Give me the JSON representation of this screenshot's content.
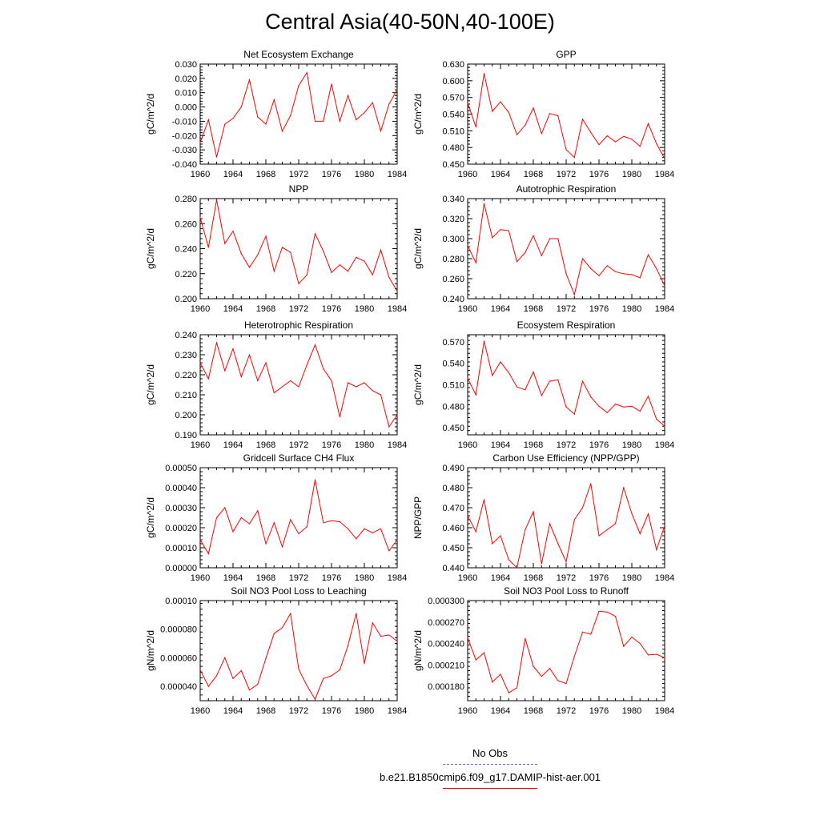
{
  "title": "Central Asia(40-50N,40-100E)",
  "legend": {
    "entries": [
      {
        "label": "No Obs",
        "color": "#6a6ae0",
        "dash": "dashed"
      },
      {
        "label": "b.e21.B1850cmip6.f09_g17.DAMIP-hist-aer.001",
        "color": "#e00000",
        "dash": "solid"
      }
    ]
  },
  "colors": {
    "series": "#ff0000",
    "axis": "#000000"
  },
  "chart_data": [
    {
      "type": "line",
      "title": "Net Ecosystem Exchange",
      "ylabel": "gC/m^2/d",
      "xlabel": "",
      "xlim": [
        1960,
        1984
      ],
      "ylim": [
        -0.04,
        0.03
      ],
      "xticks": [
        "1960",
        "1964",
        "1968",
        "1972",
        "1976",
        "1980",
        "1984"
      ],
      "yticks": [
        "-0.040",
        "-0.030",
        "-0.020",
        "-0.010",
        "0.000",
        "0.010",
        "0.020",
        "0.030"
      ],
      "x": [
        1960,
        1961,
        1962,
        1963,
        1964,
        1965,
        1966,
        1967,
        1968,
        1969,
        1970,
        1971,
        1972,
        1973,
        1974,
        1975,
        1976,
        1977,
        1978,
        1979,
        1980,
        1981,
        1982,
        1983,
        1984
      ],
      "values": [
        -0.025,
        -0.009,
        -0.035,
        -0.012,
        -0.008,
        0.0,
        0.019,
        -0.007,
        -0.012,
        0.005,
        -0.017,
        -0.006,
        0.015,
        0.024,
        -0.01,
        -0.01,
        0.016,
        -0.01,
        0.008,
        -0.009,
        -0.004,
        0.003,
        -0.017,
        0.002,
        0.012
      ]
    },
    {
      "type": "line",
      "title": "GPP",
      "ylabel": "gC/m^2/d",
      "xlabel": "",
      "xlim": [
        1960,
        1984
      ],
      "ylim": [
        0.45,
        0.63
      ],
      "xticks": [
        "1960",
        "1964",
        "1968",
        "1972",
        "1976",
        "1980",
        "1984"
      ],
      "yticks": [
        "0.450",
        "0.480",
        "0.510",
        "0.540",
        "0.570",
        "0.600",
        "0.630"
      ],
      "x": [
        1960,
        1961,
        1962,
        1963,
        1964,
        1965,
        1966,
        1967,
        1968,
        1969,
        1970,
        1971,
        1972,
        1973,
        1974,
        1975,
        1976,
        1977,
        1978,
        1979,
        1980,
        1981,
        1982,
        1983,
        1984
      ],
      "values": [
        0.56,
        0.517,
        0.613,
        0.545,
        0.562,
        0.543,
        0.503,
        0.52,
        0.551,
        0.505,
        0.541,
        0.537,
        0.476,
        0.462,
        0.531,
        0.507,
        0.485,
        0.501,
        0.49,
        0.5,
        0.495,
        0.482,
        0.523,
        0.487,
        0.46
      ]
    },
    {
      "type": "line",
      "title": "NPP",
      "ylabel": "gC/m^2/d",
      "xlabel": "",
      "xlim": [
        1960,
        1984
      ],
      "ylim": [
        0.2,
        0.28
      ],
      "xticks": [
        "1960",
        "1964",
        "1968",
        "1972",
        "1976",
        "1980",
        "1984"
      ],
      "yticks": [
        "0.200",
        "0.220",
        "0.240",
        "0.260",
        "0.280"
      ],
      "x": [
        1960,
        1961,
        1962,
        1963,
        1964,
        1965,
        1966,
        1967,
        1968,
        1969,
        1970,
        1971,
        1972,
        1973,
        1974,
        1975,
        1976,
        1977,
        1978,
        1979,
        1980,
        1981,
        1982,
        1983,
        1984
      ],
      "values": [
        0.265,
        0.241,
        0.279,
        0.244,
        0.254,
        0.236,
        0.225,
        0.235,
        0.25,
        0.222,
        0.241,
        0.237,
        0.212,
        0.219,
        0.252,
        0.238,
        0.221,
        0.227,
        0.222,
        0.233,
        0.23,
        0.219,
        0.239,
        0.217,
        0.206
      ]
    },
    {
      "type": "line",
      "title": "Autotrophic Respiration",
      "ylabel": "gC/m^2/d",
      "xlabel": "",
      "xlim": [
        1960,
        1984
      ],
      "ylim": [
        0.24,
        0.34
      ],
      "xticks": [
        "1960",
        "1964",
        "1968",
        "1972",
        "1976",
        "1980",
        "1984"
      ],
      "yticks": [
        "0.240",
        "0.260",
        "0.280",
        "0.300",
        "0.320",
        "0.340"
      ],
      "x": [
        1960,
        1961,
        1962,
        1963,
        1964,
        1965,
        1966,
        1967,
        1968,
        1969,
        1970,
        1971,
        1972,
        1973,
        1974,
        1975,
        1976,
        1977,
        1978,
        1979,
        1980,
        1981,
        1982,
        1983,
        1984
      ],
      "values": [
        0.293,
        0.276,
        0.335,
        0.301,
        0.309,
        0.308,
        0.277,
        0.286,
        0.303,
        0.283,
        0.3,
        0.3,
        0.265,
        0.244,
        0.28,
        0.27,
        0.263,
        0.273,
        0.267,
        0.265,
        0.264,
        0.261,
        0.284,
        0.27,
        0.253
      ]
    },
    {
      "type": "line",
      "title": "Heterotrophic Respiration",
      "ylabel": "gC/m^2/d",
      "xlabel": "",
      "xlim": [
        1960,
        1984
      ],
      "ylim": [
        0.19,
        0.24
      ],
      "xticks": [
        "1960",
        "1964",
        "1968",
        "1972",
        "1976",
        "1980",
        "1984"
      ],
      "yticks": [
        "0.190",
        "0.200",
        "0.210",
        "0.220",
        "0.230",
        "0.240"
      ],
      "x": [
        1960,
        1961,
        1962,
        1963,
        1964,
        1965,
        1966,
        1967,
        1968,
        1969,
        1970,
        1971,
        1972,
        1973,
        1974,
        1975,
        1976,
        1977,
        1978,
        1979,
        1980,
        1981,
        1982,
        1983,
        1984
      ],
      "values": [
        0.226,
        0.218,
        0.236,
        0.222,
        0.233,
        0.219,
        0.23,
        0.217,
        0.226,
        0.211,
        0.214,
        0.217,
        0.214,
        0.225,
        0.235,
        0.223,
        0.217,
        0.199,
        0.216,
        0.214,
        0.216,
        0.212,
        0.21,
        0.194,
        0.2
      ]
    },
    {
      "type": "line",
      "title": "Ecosystem Respiration",
      "ylabel": "gC/m^2/d",
      "xlabel": "",
      "xlim": [
        1960,
        1984
      ],
      "ylim": [
        0.44,
        0.58
      ],
      "xticks": [
        "1960",
        "1964",
        "1968",
        "1972",
        "1976",
        "1980",
        "1984"
      ],
      "yticks": [
        "0.450",
        "0.480",
        "0.510",
        "0.540",
        "0.570"
      ],
      "x": [
        1960,
        1961,
        1962,
        1963,
        1964,
        1965,
        1966,
        1967,
        1968,
        1969,
        1970,
        1971,
        1972,
        1973,
        1974,
        1975,
        1976,
        1977,
        1978,
        1979,
        1980,
        1981,
        1982,
        1983,
        1984
      ],
      "values": [
        0.519,
        0.496,
        0.571,
        0.523,
        0.542,
        0.527,
        0.507,
        0.503,
        0.528,
        0.495,
        0.515,
        0.517,
        0.479,
        0.469,
        0.515,
        0.493,
        0.48,
        0.471,
        0.483,
        0.479,
        0.48,
        0.473,
        0.494,
        0.462,
        0.452
      ]
    },
    {
      "type": "line",
      "title": "Gridcell Surface CH4 Flux",
      "ylabel": "gC/m^2/d",
      "xlabel": "",
      "xlim": [
        1960,
        1984
      ],
      "ylim": [
        0.0,
        0.0005
      ],
      "xticks": [
        "1960",
        "1964",
        "1968",
        "1972",
        "1976",
        "1980",
        "1984"
      ],
      "yticks": [
        "0.00000",
        "0.00010",
        "0.00020",
        "0.00030",
        "0.00040",
        "0.00050"
      ],
      "x": [
        1960,
        1961,
        1962,
        1963,
        1964,
        1965,
        1966,
        1967,
        1968,
        1969,
        1970,
        1971,
        1972,
        1973,
        1974,
        1975,
        1976,
        1977,
        1978,
        1979,
        1980,
        1981,
        1982,
        1983,
        1984
      ],
      "values": [
        0.00014,
        7e-05,
        0.00025,
        0.0003,
        0.00018,
        0.00025,
        0.00022,
        0.000285,
        0.00012,
        0.000225,
        0.000105,
        0.00024,
        0.00017,
        0.000205,
        0.00044,
        0.000225,
        0.000235,
        0.00023,
        0.000195,
        0.000145,
        0.000195,
        0.000175,
        0.000195,
        8.5e-05,
        0.00014
      ]
    },
    {
      "type": "line",
      "title": "Carbon Use Efficiency (NPP/GPP)",
      "ylabel": "NPP/GPP",
      "xlabel": "",
      "xlim": [
        1960,
        1984
      ],
      "ylim": [
        0.44,
        0.49
      ],
      "xticks": [
        "1960",
        "1964",
        "1968",
        "1972",
        "1976",
        "1980",
        "1984"
      ],
      "yticks": [
        "0.440",
        "0.450",
        "0.460",
        "0.470",
        "0.480",
        "0.490"
      ],
      "x": [
        1960,
        1961,
        1962,
        1963,
        1964,
        1965,
        1966,
        1967,
        1968,
        1969,
        1970,
        1971,
        1972,
        1973,
        1974,
        1975,
        1976,
        1977,
        1978,
        1979,
        1980,
        1981,
        1982,
        1983,
        1984
      ],
      "values": [
        0.466,
        0.458,
        0.474,
        0.452,
        0.456,
        0.444,
        0.44,
        0.459,
        0.468,
        0.442,
        0.462,
        0.452,
        0.443,
        0.464,
        0.47,
        0.482,
        0.456,
        0.459,
        0.462,
        0.48,
        0.467,
        0.457,
        0.467,
        0.449,
        0.461
      ]
    },
    {
      "type": "line",
      "title": "Soil NO3 Pool Loss to Leaching",
      "ylabel": "gN/m^2/d",
      "xlabel": "",
      "xlim": [
        1960,
        1984
      ],
      "ylim": [
        3e-05,
        0.0001
      ],
      "xticks": [
        "1960",
        "1964",
        "1968",
        "1972",
        "1976",
        "1980",
        "1984"
      ],
      "yticks": [
        "0.000040",
        "0.000060",
        "0.000080",
        "0.00010"
      ],
      "x": [
        1960,
        1961,
        1962,
        1963,
        1964,
        1965,
        1966,
        1967,
        1968,
        1969,
        1970,
        1971,
        1972,
        1973,
        1974,
        1975,
        1976,
        1977,
        1978,
        1979,
        1980,
        1981,
        1982,
        1983,
        1984
      ],
      "values": [
        5.15e-05,
        4e-05,
        4.75e-05,
        6e-05,
        4.55e-05,
        5.1e-05,
        3.75e-05,
        4.15e-05,
        5.95e-05,
        7.7e-05,
        8.1e-05,
        9.1e-05,
        5.2e-05,
        4.05e-05,
        3.1e-05,
        4.55e-05,
        4.75e-05,
        5.15e-05,
        6.85e-05,
        9.1e-05,
        5.6e-05,
        8.45e-05,
        7.5e-05,
        7.6e-05,
        7.15e-05
      ]
    },
    {
      "type": "line",
      "title": "Soil NO3 Pool Loss to Runoff",
      "ylabel": "gN/m^2/d",
      "xlabel": "",
      "xlim": [
        1960,
        1984
      ],
      "ylim": [
        0.00016,
        0.0003
      ],
      "xticks": [
        "1960",
        "1964",
        "1968",
        "1972",
        "1976",
        "1980",
        "1984"
      ],
      "yticks": [
        "0.000180",
        "0.000210",
        "0.000240",
        "0.000270",
        "0.000300"
      ],
      "x": [
        1960,
        1961,
        1962,
        1963,
        1964,
        1965,
        1966,
        1967,
        1968,
        1969,
        1970,
        1971,
        1972,
        1973,
        1974,
        1975,
        1976,
        1977,
        1978,
        1979,
        1980,
        1981,
        1982,
        1983,
        1984
      ],
      "values": [
        0.000248,
        0.000217,
        0.000227,
        0.000186,
        0.000197,
        0.000171,
        0.000178,
        0.000247,
        0.000208,
        0.000194,
        0.000205,
        0.000188,
        0.000184,
        0.000222,
        0.000256,
        0.000253,
        0.000285,
        0.000284,
        0.000278,
        0.000236,
        0.000249,
        0.00024,
        0.000224,
        0.000225,
        0.00022
      ]
    }
  ]
}
